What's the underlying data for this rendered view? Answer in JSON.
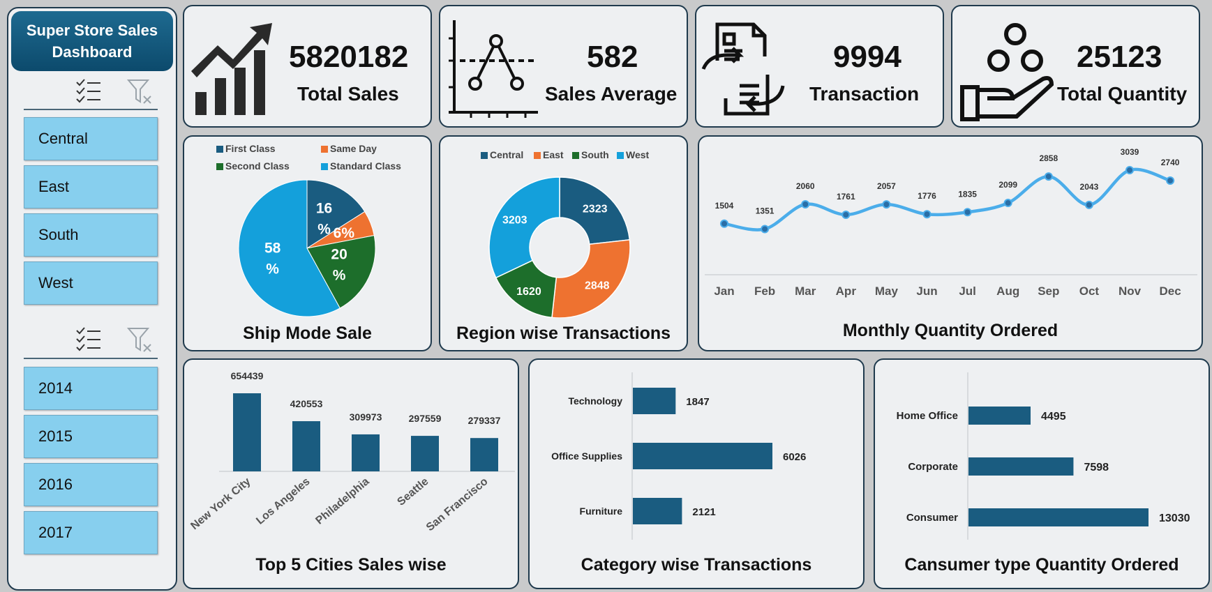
{
  "sidebar": {
    "title_line1": "Super Store Sales",
    "title_line2": "Dashboard",
    "regions": [
      "Central",
      "East",
      "South",
      "West"
    ],
    "years": [
      "2014",
      "2015",
      "2016",
      "2017"
    ]
  },
  "kpis": [
    {
      "value": "5820182",
      "label": "Total Sales",
      "icon": "growth-chart-icon"
    },
    {
      "value": "582",
      "label": "Sales Average",
      "icon": "average-graph-icon"
    },
    {
      "value": "9994",
      "label": "Transaction",
      "icon": "invoice-exchange-icon"
    },
    {
      "value": "25123",
      "label": "Total Quantity",
      "icon": "hand-coins-icon"
    }
  ],
  "colors": {
    "dark_blue": "#1a5c80",
    "orange": "#ee7230",
    "green": "#1d6e2b",
    "light_blue": "#14a0db",
    "line_blue": "#4badea"
  },
  "chart_data": [
    {
      "type": "pie",
      "title": "Ship Mode Sale",
      "categories": [
        "First Class",
        "Same Day",
        "Second Class",
        "Standard Class"
      ],
      "values": [
        16,
        6,
        20,
        58
      ],
      "labels": [
        "16 %",
        "6%",
        "20 %",
        "58 %"
      ],
      "legend": "top"
    },
    {
      "type": "pie",
      "subtype": "donut",
      "title": "Region wise Transactions",
      "categories": [
        "Central",
        "East",
        "South",
        "West"
      ],
      "values": [
        2323,
        2848,
        1620,
        3203
      ],
      "legend": "top"
    },
    {
      "type": "line",
      "title": "Monthly Quantity Ordered",
      "categories": [
        "Jan",
        "Feb",
        "Mar",
        "Apr",
        "May",
        "Jun",
        "Jul",
        "Aug",
        "Sep",
        "Oct",
        "Nov",
        "Dec"
      ],
      "values": [
        1504,
        1351,
        2060,
        1761,
        2057,
        1776,
        1835,
        2099,
        2858,
        2043,
        3039,
        2740
      ]
    },
    {
      "type": "bar",
      "title": "Top 5 Cities Sales wise",
      "categories": [
        "New York City",
        "Los Angeles",
        "Philadelphia",
        "Seattle",
        "San Francisco"
      ],
      "values": [
        654439,
        420553,
        309973,
        297559,
        279337
      ]
    },
    {
      "type": "bar",
      "orientation": "horizontal",
      "title": "Category wise Transactions",
      "categories": [
        "Technology",
        "Office Supplies",
        "Furniture"
      ],
      "values": [
        1847,
        6026,
        2121
      ]
    },
    {
      "type": "bar",
      "orientation": "horizontal",
      "title": "Cansumer type Quantity Ordered",
      "categories": [
        "Home Office",
        "Corporate",
        "Consumer"
      ],
      "values": [
        4495,
        7598,
        13030
      ]
    }
  ]
}
